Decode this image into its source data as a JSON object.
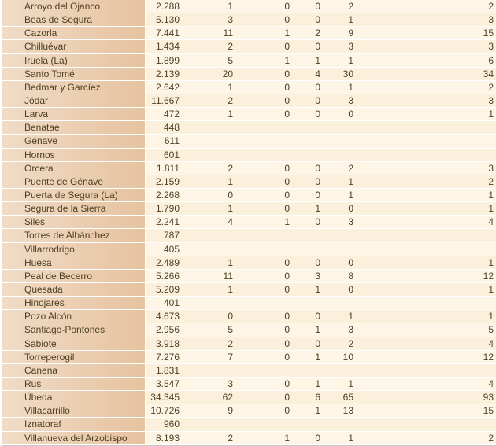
{
  "rows": [
    [
      "Arroyo del Ojanco",
      "2.288",
      "1",
      "0",
      "0",
      "2",
      "2"
    ],
    [
      "Beas de Segura",
      "5.130",
      "3",
      "0",
      "0",
      "1",
      "3"
    ],
    [
      "Cazorla",
      "7.441",
      "11",
      "1",
      "2",
      "9",
      "15"
    ],
    [
      "Chilluévar",
      "1.434",
      "2",
      "0",
      "0",
      "3",
      "3"
    ],
    [
      "Iruela (La)",
      "1.899",
      "5",
      "1",
      "1",
      "1",
      "6"
    ],
    [
      "Santo Tomé",
      "2.139",
      "20",
      "0",
      "4",
      "30",
      "34"
    ],
    [
      "Bedmar y Garcíez",
      "2.642",
      "1",
      "0",
      "0",
      "1",
      "2"
    ],
    [
      "Jódar",
      "11.667",
      "2",
      "0",
      "0",
      "3",
      "3"
    ],
    [
      "Larva",
      "472",
      "1",
      "0",
      "0",
      "0",
      "1"
    ],
    [
      "Benatae",
      "448",
      "",
      "",
      "",
      "",
      ""
    ],
    [
      "Génave",
      "611",
      "",
      "",
      "",
      "",
      ""
    ],
    [
      "Hornos",
      "601",
      "",
      "",
      "",
      "",
      ""
    ],
    [
      "Orcera",
      "1.811",
      "2",
      "0",
      "0",
      "2",
      "3"
    ],
    [
      "Puente de Génave",
      "2.159",
      "1",
      "0",
      "0",
      "1",
      "2"
    ],
    [
      "Puerta de Segura (La)",
      "2.268",
      "0",
      "0",
      "0",
      "1",
      "1"
    ],
    [
      "Segura de la Sierra",
      "1.790",
      "1",
      "0",
      "1",
      "0",
      "1"
    ],
    [
      "Siles",
      "2.241",
      "4",
      "1",
      "0",
      "3",
      "4"
    ],
    [
      "Torres de Albánchez",
      "787",
      "",
      "",
      "",
      "",
      ""
    ],
    [
      "Villarrodrigo",
      "405",
      "",
      "",
      "",
      "",
      ""
    ],
    [
      "Huesa",
      "2.489",
      "1",
      "0",
      "0",
      "0",
      "1"
    ],
    [
      "Peal de Becerro",
      "5.266",
      "11",
      "0",
      "3",
      "8",
      "12"
    ],
    [
      "Quesada",
      "5.209",
      "1",
      "0",
      "1",
      "0",
      "1"
    ],
    [
      "Hinojares",
      "401",
      "",
      "",
      "",
      "",
      ""
    ],
    [
      "Pozo Alcón",
      "4.673",
      "0",
      "0",
      "0",
      "1",
      "1"
    ],
    [
      "Santiago-Pontones",
      "2.956",
      "5",
      "0",
      "1",
      "3",
      "5"
    ],
    [
      "Sabiote",
      "3.918",
      "2",
      "0",
      "0",
      "2",
      "4"
    ],
    [
      "Torreperogil",
      "7.276",
      "7",
      "0",
      "1",
      "10",
      "12"
    ],
    [
      "Canena",
      "1.831",
      "",
      "",
      "",
      "",
      ""
    ],
    [
      "Rus",
      "3.547",
      "3",
      "0",
      "1",
      "1",
      "4"
    ],
    [
      "Úbeda",
      "34.345",
      "62",
      "0",
      "6",
      "65",
      "93"
    ],
    [
      "Villacarrillo",
      "10.726",
      "9",
      "0",
      "1",
      "13",
      "15"
    ],
    [
      "Iznatoraf",
      "960",
      "",
      "",
      "",
      "",
      ""
    ],
    [
      "Villanueva del Arzobispo",
      "8.193",
      "2",
      "1",
      "0",
      "1",
      "2"
    ]
  ]
}
